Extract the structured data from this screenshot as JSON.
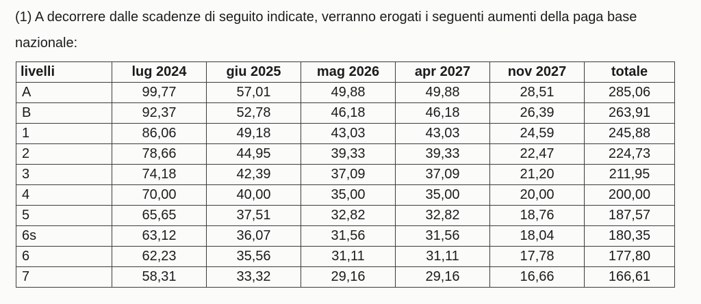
{
  "intro_text": "(1) A decorrere dalle scadenze di seguito indicate, verranno erogati i seguenti aumenti della paga base nazionale:",
  "table": {
    "headers": [
      "livelli",
      "lug 2024",
      "giu 2025",
      "mag 2026",
      "apr 2027",
      "nov 2027",
      "totale"
    ],
    "rows": [
      [
        "A",
        "99,77",
        "57,01",
        "49,88",
        "49,88",
        "28,51",
        "285,06"
      ],
      [
        "B",
        "92,37",
        "52,78",
        "46,18",
        "46,18",
        "26,39",
        "263,91"
      ],
      [
        "1",
        "86,06",
        "49,18",
        "43,03",
        "43,03",
        "24,59",
        "245,88"
      ],
      [
        "2",
        "78,66",
        "44,95",
        "39,33",
        "39,33",
        "22,47",
        "224,73"
      ],
      [
        "3",
        "74,18",
        "42,39",
        "37,09",
        "37,09",
        "21,20",
        "211,95"
      ],
      [
        "4",
        "70,00",
        "40,00",
        "35,00",
        "35,00",
        "20,00",
        "200,00"
      ],
      [
        "5",
        "65,65",
        "37,51",
        "32,82",
        "32,82",
        "18,76",
        "187,57"
      ],
      [
        "6s",
        "63,12",
        "36,07",
        "31,56",
        "31,56",
        "18,04",
        "180,35"
      ],
      [
        "6",
        "62,23",
        "35,56",
        "31,11",
        "31,11",
        "17,78",
        "177,80"
      ],
      [
        "7",
        "58,31",
        "33,32",
        "29,16",
        "29,16",
        "16,66",
        "166,61"
      ]
    ]
  }
}
